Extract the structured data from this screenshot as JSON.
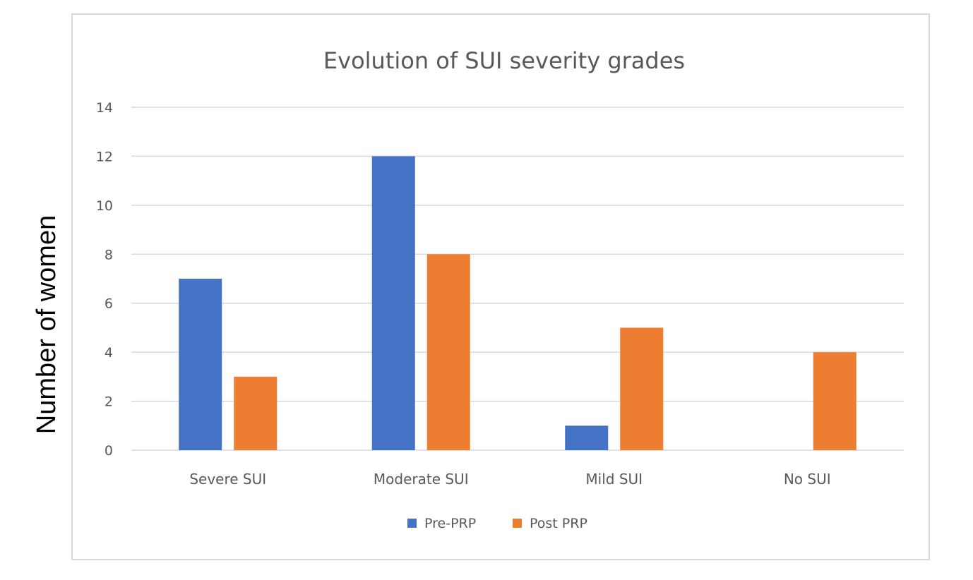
{
  "chart_data": {
    "type": "bar",
    "title": "Evolution of SUI severity grades",
    "ylabel": "Number of women",
    "xlabel": "",
    "categories": [
      "Severe SUI",
      "Moderate SUI",
      "Mild SUI",
      "No SUI"
    ],
    "series": [
      {
        "name": "Pre-PRP",
        "values": [
          7,
          12,
          1,
          0
        ],
        "color": "#4472C4"
      },
      {
        "name": "Post PRP",
        "values": [
          3,
          8,
          5,
          4
        ],
        "color": "#ED7D31"
      }
    ],
    "ylim": [
      0,
      14
    ],
    "yticks": [
      0,
      2,
      4,
      6,
      8,
      10,
      12,
      14
    ],
    "grid": true,
    "legend_position": "bottom"
  }
}
